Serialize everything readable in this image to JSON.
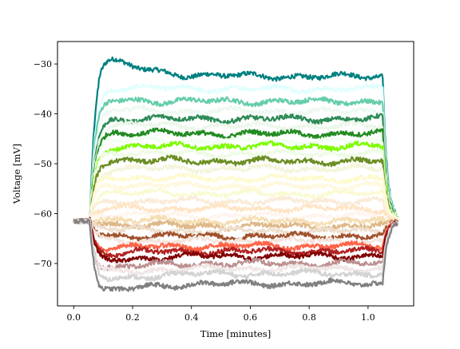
{
  "chart_data": {
    "type": "line",
    "title": "",
    "xlabel": "Time [minutes]",
    "ylabel": "Voltage [mV]",
    "xlim": [
      -0.055,
      1.155
    ],
    "ylim": [
      -78.5,
      -25.5
    ],
    "x_ticks": [
      0.0,
      0.2,
      0.4,
      0.6,
      0.8,
      1.0
    ],
    "x_tick_labels": [
      "0.0",
      "0.2",
      "0.4",
      "0.6",
      "0.8",
      "1.0"
    ],
    "y_ticks": [
      -70,
      -60,
      -50,
      -40,
      -30
    ],
    "y_tick_labels": [
      "−70",
      "−60",
      "−50",
      "−40",
      "−30"
    ],
    "grid": false,
    "legend": "none",
    "noise_amplitude_mv": 0.45,
    "step_window": {
      "baseline_mv": -61.5,
      "step_on": 0.055,
      "step_off": 1.05,
      "record_end": 1.1
    },
    "series": [
      {
        "color": "#008080",
        "peak_mv": -28.5,
        "steady_mv": -32.5
      },
      {
        "color": "#e0ffff",
        "peak_mv": -34.5,
        "steady_mv": -35.0
      },
      {
        "color": "#66cdaa",
        "peak_mv": -37.0,
        "steady_mv": -37.5
      },
      {
        "color": "#eef9f1",
        "peak_mv": -39.0,
        "steady_mv": -39.5
      },
      {
        "color": "#2e8b57",
        "peak_mv": -41.0,
        "steady_mv": -41.0
      },
      {
        "color": "#ecf7ea",
        "peak_mv": -42.0,
        "steady_mv": -42.5
      },
      {
        "color": "#228b22",
        "peak_mv": -43.5,
        "steady_mv": -44.0
      },
      {
        "color": "#f0fff0",
        "peak_mv": -45.0,
        "steady_mv": -45.5
      },
      {
        "color": "#7cfc00",
        "peak_mv": -46.5,
        "steady_mv": -46.5
      },
      {
        "color": "#eefbe4",
        "peak_mv": -47.5,
        "steady_mv": -48.0
      },
      {
        "color": "#6b8e23",
        "peak_mv": -49.0,
        "steady_mv": -49.5
      },
      {
        "color": "#f5f5dc",
        "peak_mv": -51.0,
        "steady_mv": -51.0
      },
      {
        "color": "#fffacd",
        "peak_mv": -52.5,
        "steady_mv": -53.0
      },
      {
        "color": "#fff8dc",
        "peak_mv": -54.0,
        "steady_mv": -54.5
      },
      {
        "color": "#fafad2",
        "peak_mv": -55.5,
        "steady_mv": -56.0
      },
      {
        "color": "#faebd7",
        "peak_mv": -57.5,
        "steady_mv": -57.5
      },
      {
        "color": "#ffe4c4",
        "peak_mv": -59.0,
        "steady_mv": -59.0
      },
      {
        "color": "#fff5ee",
        "peak_mv": -60.0,
        "steady_mv": -60.5
      },
      {
        "color": "#f5deb3",
        "peak_mv": -61.0,
        "steady_mv": -61.5
      },
      {
        "color": "#deb887",
        "peak_mv": -62.0,
        "steady_mv": -62.5
      },
      {
        "color": "#eedfcc",
        "peak_mv": -63.0,
        "steady_mv": -63.5
      },
      {
        "color": "#a0522d",
        "peak_mv": -64.5,
        "steady_mv": -64.5
      },
      {
        "color": "#f4e4dc",
        "peak_mv": -65.5,
        "steady_mv": -65.5
      },
      {
        "color": "#ff6347",
        "peak_mv": -67.0,
        "steady_mv": -66.5
      },
      {
        "color": "#b22222",
        "peak_mv": -68.0,
        "steady_mv": -67.5
      },
      {
        "color": "#800000",
        "peak_mv": -69.5,
        "steady_mv": -68.5
      },
      {
        "color": "#bc8f8f",
        "peak_mv": -71.0,
        "steady_mv": -70.0
      },
      {
        "color": "#f1e6e6",
        "peak_mv": -72.0,
        "steady_mv": -71.0
      },
      {
        "color": "#d3d3d3",
        "peak_mv": -73.5,
        "steady_mv": -72.0
      },
      {
        "color": "#808080",
        "peak_mv": -76.0,
        "steady_mv": -74.0
      }
    ]
  }
}
